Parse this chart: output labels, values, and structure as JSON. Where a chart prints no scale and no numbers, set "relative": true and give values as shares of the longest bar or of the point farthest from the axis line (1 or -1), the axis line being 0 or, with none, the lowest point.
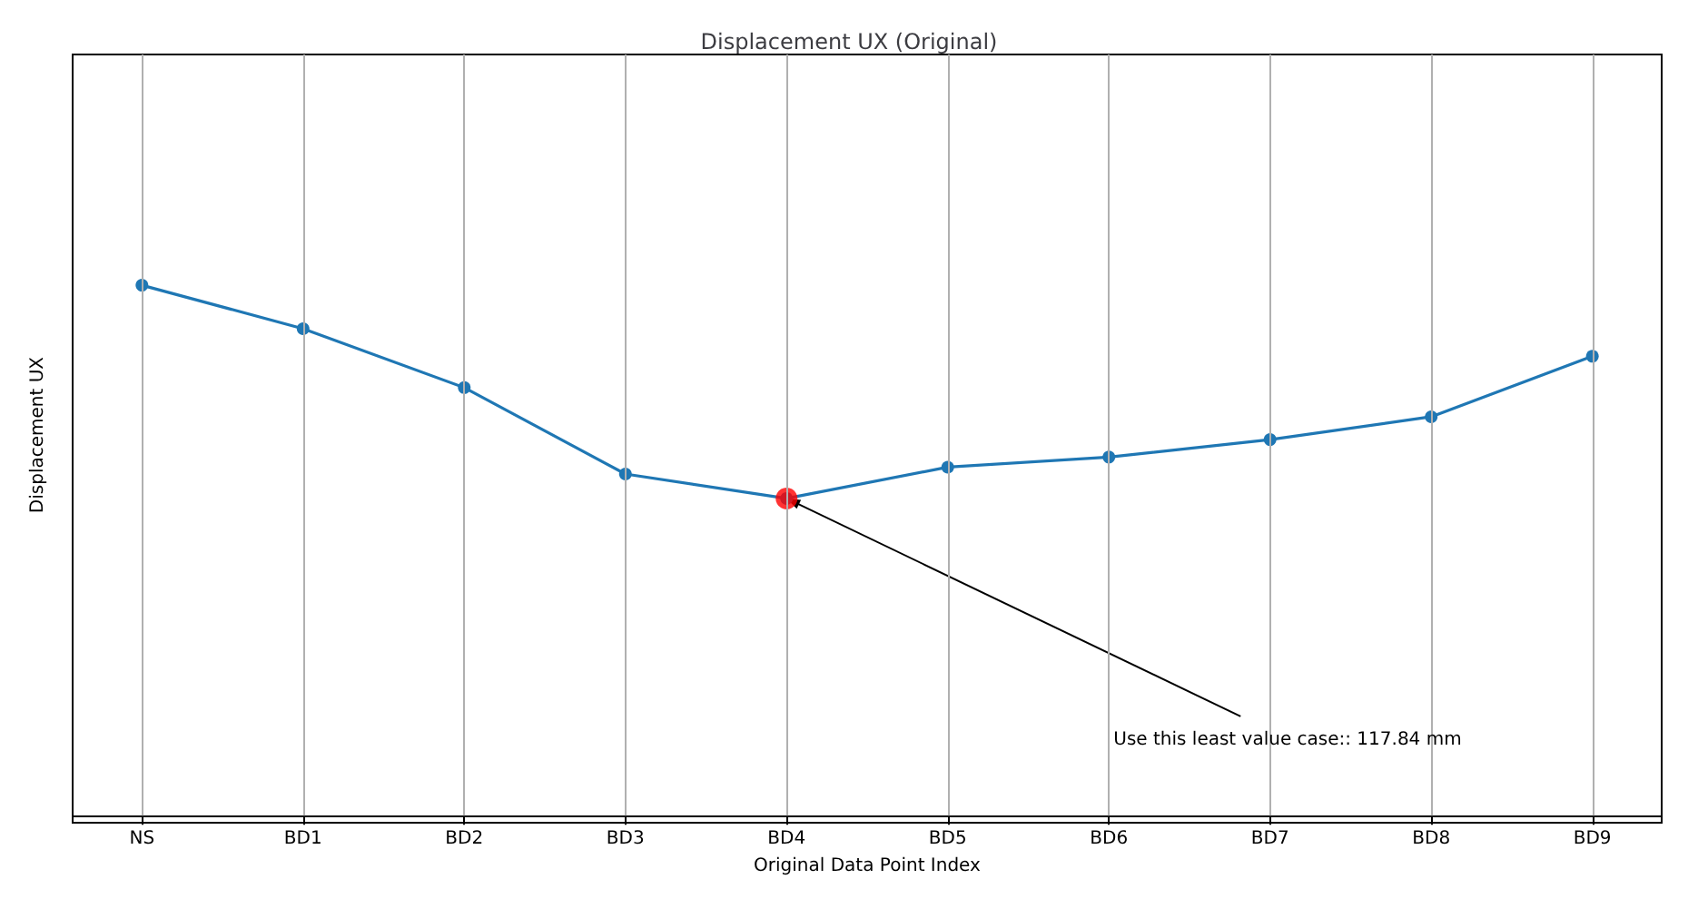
{
  "chart_data": {
    "type": "line",
    "title": "Displacement UX (Original)",
    "xlabel": "Original Data Point Index",
    "ylabel": "Displacement UX",
    "relative": true,
    "categories": [
      "NS",
      "BD1",
      "BD2",
      "BD3",
      "BD4",
      "BD5",
      "BD6",
      "BD7",
      "BD8",
      "BD9"
    ],
    "series": [
      {
        "color": "#1f77b4",
        "values": [
          1,
          0.918,
          0.807,
          0.644,
          0.598,
          0.657,
          0.676,
          0.709,
          0.752,
          0.866
        ]
      },
      {
        "type": "scatter",
        "color": "#ff0000",
        "x": [
          "BD4"
        ],
        "values": [
          0.598
        ]
      }
    ],
    "annotations": [
      {
        "text": "Use this least value case:: 117.84 mm",
        "x": "BD4",
        "y": 0.598
      }
    ],
    "grid": "x",
    "marker": "circle",
    "tick_labels": "x"
  }
}
